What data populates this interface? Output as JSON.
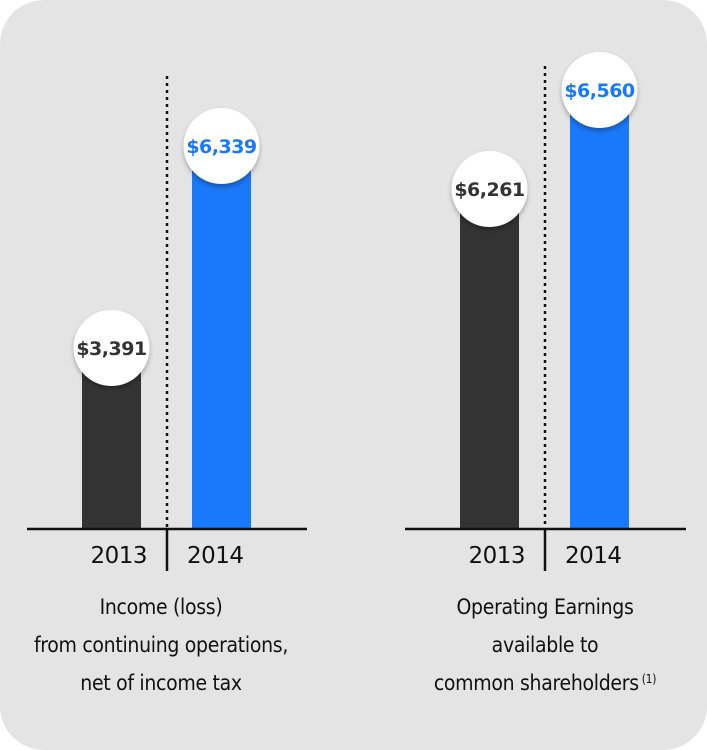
{
  "chart_data": [
    {
      "type": "bar",
      "title": "Income (loss) from continuing operations, net of income tax",
      "caption_lines": [
        "Income (loss)",
        "from continuing operations,",
        "net of income tax"
      ],
      "footnote": "",
      "categories": [
        "2013",
        "2014"
      ],
      "values": [
        3391,
        6339
      ],
      "labels": [
        "$3,391",
        "$6,339"
      ],
      "colors": [
        "#333333",
        "#1a78fa"
      ],
      "label_colors": [
        "#333333",
        "#1a78fa"
      ],
      "xlabel": "",
      "ylabel": "",
      "grid": false
    },
    {
      "type": "bar",
      "title": "Operating Earnings available to common shareholders (1)",
      "caption_lines": [
        "Operating Earnings",
        "available to",
        "common shareholders"
      ],
      "footnote": "(1)",
      "categories": [
        "2013",
        "2014"
      ],
      "values": [
        6261,
        6560
      ],
      "labels": [
        "$6,261",
        "$6,560"
      ],
      "colors": [
        "#333333",
        "#1a78fa"
      ],
      "label_colors": [
        "#333333",
        "#1a78fa"
      ],
      "xlabel": "",
      "ylabel": "",
      "grid": false
    }
  ]
}
